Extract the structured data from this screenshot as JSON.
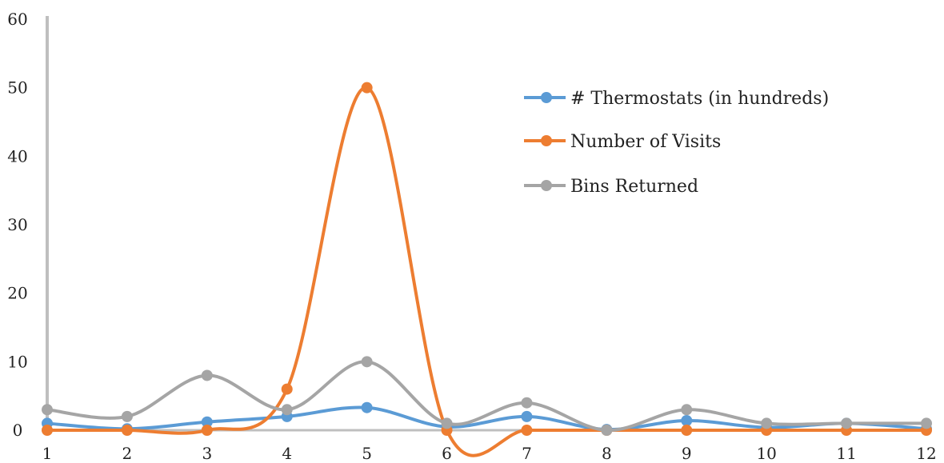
{
  "chart_data": {
    "type": "line",
    "smooth": true,
    "title": "",
    "xlabel": "",
    "ylabel": "",
    "categories": [
      "1",
      "2",
      "3",
      "4",
      "5",
      "6",
      "7",
      "8",
      "9",
      "10",
      "11",
      "12"
    ],
    "ylim": [
      0,
      60
    ],
    "yticks": [
      "0",
      "10",
      "20",
      "30",
      "40",
      "50",
      "60"
    ],
    "grid": false,
    "legend_position": "right",
    "series": [
      {
        "name": "# Thermostats (in hundreds)",
        "color": "#5b9bd5",
        "values": [
          1,
          0.2,
          1.2,
          2,
          3.3,
          0.5,
          2,
          0.1,
          1.4,
          0.4,
          1,
          0.2
        ]
      },
      {
        "name": "Number of Visits",
        "color": "#ed7d31",
        "values": [
          0,
          0,
          0,
          6,
          50,
          0,
          0,
          0,
          0,
          0,
          0,
          0
        ]
      },
      {
        "name": "Bins Returned",
        "color": "#a5a5a5",
        "values": [
          3,
          2,
          8,
          3,
          10,
          1,
          4,
          0,
          3,
          1,
          1,
          1
        ]
      }
    ],
    "axis_color": "#bfbfbf"
  }
}
